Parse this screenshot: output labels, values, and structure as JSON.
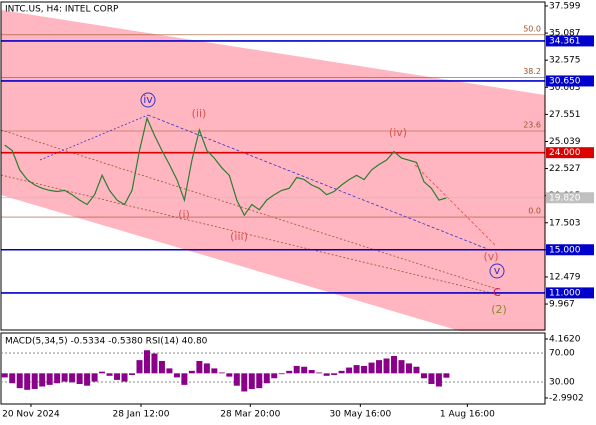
{
  "chart_data": [
    {
      "type": "line",
      "title": "INTC.US, H4:  INTEL CORP",
      "x": [
        0,
        1,
        2,
        3,
        4,
        5,
        6,
        7,
        8,
        9,
        10,
        11,
        12,
        13,
        14,
        15,
        16,
        17,
        18,
        19,
        20,
        21,
        22,
        23,
        24,
        25,
        26,
        27,
        28,
        29,
        30,
        31,
        32,
        33,
        34,
        35,
        36,
        37,
        38,
        39,
        40,
        41,
        42,
        43,
        44,
        45,
        46,
        47,
        48,
        49,
        50,
        51,
        52,
        53,
        54,
        55,
        56,
        57,
        58,
        59
      ],
      "values": [
        24.7,
        24.2,
        22.4,
        21.5,
        21.0,
        20.7,
        20.5,
        20.4,
        20.5,
        20.1,
        19.6,
        19.2,
        20.1,
        21.9,
        20.5,
        19.6,
        19.2,
        20.5,
        24.2,
        27.2,
        25.6,
        24.2,
        22.9,
        21.5,
        19.6,
        23.3,
        26.1,
        24.2,
        23.5,
        22.6,
        21.9,
        19.6,
        18.2,
        19.2,
        18.7,
        19.6,
        20.1,
        20.5,
        20.7,
        21.7,
        21.5,
        21.0,
        20.7,
        20.1,
        20.4,
        21.0,
        21.5,
        21.9,
        21.5,
        22.4,
        22.9,
        23.3,
        24.1,
        23.5,
        23.3,
        23.1,
        21.3,
        20.7,
        19.6,
        19.8
      ],
      "color": "#2e7d32",
      "xlim": [
        -0.5,
        72.17
      ],
      "xticks": [
        {
          "value": 3.5,
          "label": "20 Nov 2024"
        },
        {
          "value": 18.2,
          "label": "28 Jan 12:00"
        },
        {
          "value": 32.8,
          "label": "28 Mar 20:00"
        },
        {
          "value": 47.5,
          "label": "30 May 16:00"
        },
        {
          "value": 61.8,
          "label": "1 Aug 16:00"
        }
      ],
      "ylim": [
        7.56,
        37.97
      ],
      "yticks": [
        37.599,
        35.087,
        32.575,
        30.063,
        27.551,
        25.039,
        22.527,
        20.015,
        17.503,
        14.991,
        12.479,
        9.967
      ],
      "levels": [
        {
          "value": 34.361,
          "label": "34.361",
          "color": "#0000cc"
        },
        {
          "value": 30.65,
          "label": "30.650",
          "color": "#0000cc"
        },
        {
          "value": 24.0,
          "label": "24.000",
          "color": "#dd0000"
        },
        {
          "value": 19.82,
          "label": "19.820",
          "color": "#c0c0c0"
        },
        {
          "value": 15.0,
          "label": "15.000",
          "color": "#0000cc"
        },
        {
          "value": 11.0,
          "label": "11.000",
          "color": "#0000cc"
        }
      ],
      "fib_levels": [
        {
          "value": 34.93,
          "label": "50.0"
        },
        {
          "value": 30.95,
          "label": "38.2"
        },
        {
          "value": 26.01,
          "label": "23.6"
        },
        {
          "value": 18.03,
          "label": "0.0"
        }
      ],
      "annotations": [
        {
          "text": "iv",
          "color": "#3333cc",
          "circle": true
        },
        {
          "text": "(ii)",
          "color": "#d9534f",
          "circle": false
        },
        {
          "text": "(i)",
          "color": "#d9534f",
          "circle": false
        },
        {
          "text": "(iii)",
          "color": "#d9534f",
          "circle": false
        },
        {
          "text": "(iv)",
          "color": "#d9534f",
          "circle": false
        },
        {
          "text": "(v)",
          "color": "#d9534f",
          "circle": false
        },
        {
          "text": "v",
          "color": "#3333cc",
          "circle": true
        },
        {
          "text": "C",
          "color": "#c2185b",
          "circle": false
        },
        {
          "text": "(2)",
          "color": "#8a8a2a",
          "circle": false
        }
      ]
    },
    {
      "type": "bar",
      "title": "MACD(5,34,5) -0.5334 -0.5380 RSI(14) 40.80",
      "values": [
        -0.5,
        -1.2,
        -1.8,
        -2.0,
        -1.9,
        -1.6,
        -1.4,
        -1.2,
        -1.0,
        -1.1,
        -1.3,
        -1.5,
        -1.0,
        0.2,
        -0.3,
        -0.8,
        -1.0,
        -0.2,
        1.6,
        2.8,
        2.4,
        1.5,
        0.6,
        -0.5,
        -1.4,
        0.3,
        1.5,
        1.2,
        0.6,
        0.1,
        -0.4,
        -1.5,
        -2.2,
        -1.9,
        -1.8,
        -1.2,
        -0.6,
        -0.1,
        0.3,
        0.9,
        0.8,
        0.4,
        0.1,
        -0.3,
        -0.2,
        0.3,
        0.7,
        1.0,
        0.9,
        1.3,
        1.6,
        1.8,
        2.1,
        1.6,
        1.2,
        0.8,
        -0.6,
        -1.3,
        -1.6,
        -0.53
      ],
      "color": "#8b008b",
      "ylim": [
        -3.72,
        4.89
      ],
      "yticks": [
        {
          "value": 4.162,
          "label": "4.1620"
        },
        {
          "value": -2.9902,
          "label": "-2.9902"
        }
      ],
      "y2lim": [
        -0.3,
        97.6
      ],
      "y2ticks": [
        {
          "value": 70,
          "label": "70.00"
        },
        {
          "value": 30,
          "label": "30.00"
        }
      ]
    }
  ]
}
